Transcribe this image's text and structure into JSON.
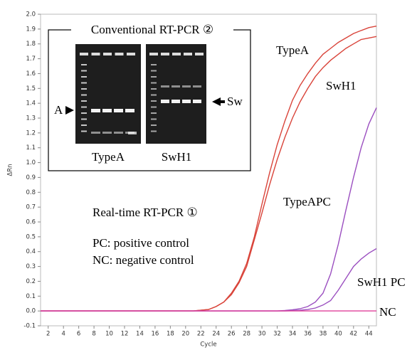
{
  "chart_data": {
    "type": "line",
    "y_label": "ΔRn",
    "x_label": "Cycle",
    "xlim": [
      1,
      45
    ],
    "xticks": [
      2,
      4,
      6,
      8,
      10,
      12,
      14,
      16,
      18,
      20,
      22,
      24,
      26,
      28,
      30,
      32,
      34,
      36,
      38,
      40,
      42,
      44
    ],
    "ylim": [
      -0.1,
      2.0
    ],
    "yticks": [
      -0.1,
      {
        "value": 0,
        "label": "0.0"
      },
      0.1,
      0.2,
      0.3,
      0.4,
      0.5,
      0.6,
      0.7,
      0.8,
      0.9,
      {
        "value": 1,
        "label": "1.0"
      },
      1.1,
      1.2,
      1.3,
      1.4,
      1.5,
      1.6,
      1.7,
      1.8,
      1.9,
      {
        "value": 2,
        "label": "2.0"
      }
    ],
    "x": [
      1,
      2,
      3,
      4,
      5,
      6,
      7,
      8,
      9,
      10,
      11,
      12,
      13,
      14,
      15,
      16,
      17,
      18,
      19,
      20,
      21,
      22,
      23,
      24,
      25,
      26,
      27,
      28,
      29,
      30,
      31,
      32,
      33,
      34,
      35,
      36,
      37,
      38,
      39,
      40,
      41,
      42,
      43,
      44,
      45
    ],
    "series": [
      {
        "name": "TypeA",
        "color": "#d9443a",
        "values": [
          0,
          0,
          0,
          0,
          0,
          0,
          0,
          0,
          0,
          0,
          0,
          0,
          0,
          0,
          0,
          0,
          0,
          0,
          0,
          0,
          0,
          0.005,
          0.01,
          0.03,
          0.06,
          0.12,
          0.2,
          0.32,
          0.5,
          0.72,
          0.93,
          1.12,
          1.28,
          1.42,
          1.52,
          1.6,
          1.67,
          1.73,
          1.77,
          1.81,
          1.84,
          1.87,
          1.89,
          1.91,
          1.92
        ]
      },
      {
        "name": "SwH1",
        "color": "#d9443a",
        "values": [
          0,
          0,
          0,
          0,
          0,
          0,
          0,
          0,
          0,
          0,
          0,
          0,
          0,
          0,
          0,
          0,
          0,
          0,
          0,
          0,
          0,
          0.005,
          0.01,
          0.03,
          0.06,
          0.11,
          0.19,
          0.3,
          0.48,
          0.66,
          0.85,
          1.02,
          1.17,
          1.3,
          1.41,
          1.5,
          1.58,
          1.64,
          1.69,
          1.73,
          1.77,
          1.8,
          1.83,
          1.84,
          1.85
        ]
      },
      {
        "name": "TypeAPC",
        "color": "#9b4fc0",
        "values": [
          0,
          0,
          0,
          0,
          0,
          0,
          0,
          0,
          0,
          0,
          0,
          0,
          0,
          0,
          0,
          0,
          0,
          0,
          0,
          0,
          0,
          0,
          0,
          0,
          0,
          0,
          0,
          0,
          0,
          0,
          0,
          0,
          0.003,
          0.008,
          0.015,
          0.03,
          0.06,
          0.12,
          0.25,
          0.45,
          0.68,
          0.9,
          1.1,
          1.26,
          1.37
        ]
      },
      {
        "name": "SwH1 PC",
        "color": "#9b4fc0",
        "values": [
          0,
          0,
          0,
          0,
          0,
          0,
          0,
          0,
          0,
          0,
          0,
          0,
          0,
          0,
          0,
          0,
          0,
          0,
          0,
          0,
          0,
          0,
          0,
          0,
          0,
          0,
          0,
          0,
          0,
          0,
          0,
          0,
          0,
          0.002,
          0.005,
          0.01,
          0.02,
          0.04,
          0.07,
          0.14,
          0.22,
          0.3,
          0.35,
          0.39,
          0.42
        ]
      },
      {
        "name": "NC",
        "color": "#e0409a",
        "values": [
          0,
          0,
          0,
          0,
          0,
          0,
          0,
          0,
          0,
          0,
          0,
          0,
          0,
          0,
          0,
          0,
          0,
          0,
          0,
          0,
          0,
          0,
          0,
          0,
          0,
          0,
          0,
          0,
          0,
          0,
          0,
          0,
          0,
          0,
          0,
          0,
          0,
          0,
          0,
          0,
          0,
          0,
          0,
          0,
          0
        ]
      }
    ],
    "annotations": [
      "Real-time RT-PCR ①",
      "PC: positive control",
      "NC: negative control"
    ],
    "inset": {
      "title": "Conventional RT-PCR ②",
      "left_marker": "A",
      "right_marker": "Sw",
      "lanes": [
        "TypeA",
        "SwH1"
      ]
    }
  }
}
